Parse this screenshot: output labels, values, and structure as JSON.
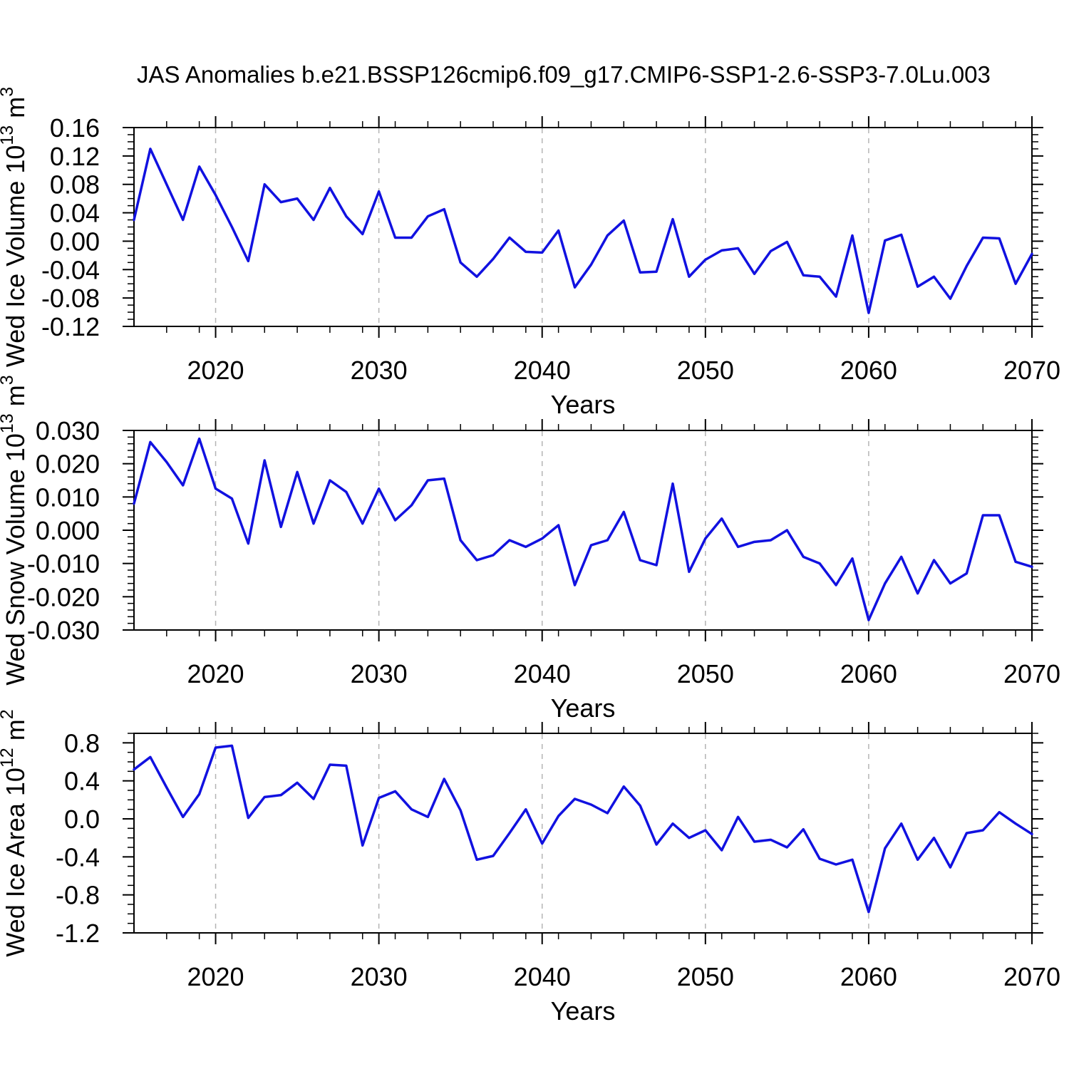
{
  "title": "JAS Anomalies b.e21.BSSP126cmip6.f09_g17.CMIP6-SSP1-2.6-SSP3-7.0Lu.003",
  "colors": {
    "line": "#1111e0",
    "grid": "#b4b4b4",
    "axis": "#000000"
  },
  "chart_data": [
    {
      "type": "line",
      "name": "wed-ice-volume",
      "ylabel": {
        "base": "Wed Ice Volume 10",
        "exp": "13",
        "unit": " m",
        "unit_exp": "3"
      },
      "xlabel": "Years",
      "x_start": 2015,
      "x_end": 2070,
      "xlim": [
        2015,
        2070
      ],
      "ylim": [
        -0.12,
        0.16
      ],
      "ytick_values": [
        0.16,
        0.12,
        0.08,
        0.04,
        0.0,
        -0.04,
        -0.08,
        -0.12
      ],
      "ytick_labels": [
        "0.16",
        "0.12",
        "0.08",
        "0.04",
        "0.00",
        "-0.04",
        "-0.08",
        "-0.12"
      ],
      "yminor_step": 0.01,
      "xtick_values": [
        2020,
        2030,
        2040,
        2050,
        2060,
        2070
      ],
      "xtick_labels": [
        "2020",
        "2030",
        "2040",
        "2050",
        "2060",
        "2070"
      ],
      "xminor_step": 2,
      "gridlines": [
        2020,
        2030,
        2040,
        2050,
        2060
      ],
      "grid_style": "dashed",
      "legend": "none",
      "values": [
        0.03,
        0.13,
        0.08,
        0.03,
        0.105,
        0.065,
        0.02,
        -0.028,
        0.08,
        0.055,
        0.06,
        0.03,
        0.075,
        0.035,
        0.01,
        0.07,
        0.005,
        0.005,
        0.035,
        0.045,
        -0.03,
        -0.05,
        -0.025,
        0.005,
        -0.015,
        -0.016,
        0.015,
        -0.065,
        -0.033,
        0.008,
        0.029,
        -0.044,
        -0.043,
        0.031,
        -0.05,
        -0.026,
        -0.013,
        -0.01,
        -0.046,
        -0.014,
        -0.001,
        -0.048,
        -0.05,
        -0.078,
        0.008,
        -0.101,
        0.001,
        0.009,
        -0.064,
        -0.05,
        -0.081,
        -0.035,
        0.005,
        0.004,
        -0.06,
        -0.018
      ]
    },
    {
      "type": "line",
      "name": "wed-snow-volume",
      "ylabel": {
        "base": "Wed Snow Volume 10",
        "exp": "13",
        "unit": " m",
        "unit_exp": "3"
      },
      "xlabel": "Years",
      "x_start": 2015,
      "x_end": 2070,
      "xlim": [
        2015,
        2070
      ],
      "ylim": [
        -0.03,
        0.03
      ],
      "ytick_values": [
        0.03,
        0.02,
        0.01,
        0.0,
        -0.01,
        -0.02,
        -0.03
      ],
      "ytick_labels": [
        "0.030",
        "0.020",
        "0.010",
        "0.000",
        "-0.010",
        "-0.020",
        "-0.030"
      ],
      "yminor_step": 0.002,
      "xtick_values": [
        2020,
        2030,
        2040,
        2050,
        2060,
        2070
      ],
      "xtick_labels": [
        "2020",
        "2030",
        "2040",
        "2050",
        "2060",
        "2070"
      ],
      "xminor_step": 2,
      "gridlines": [
        2020,
        2030,
        2040,
        2050,
        2060
      ],
      "grid_style": "dashed",
      "legend": "none",
      "values": [
        0.008,
        0.0265,
        0.0205,
        0.0135,
        0.0275,
        0.0125,
        0.0095,
        -0.004,
        0.021,
        0.001,
        0.0175,
        0.002,
        0.015,
        0.0115,
        0.002,
        0.0125,
        0.003,
        0.0075,
        0.015,
        0.0155,
        -0.003,
        -0.009,
        -0.0075,
        -0.003,
        -0.005,
        -0.0025,
        0.0015,
        -0.0165,
        -0.0045,
        -0.003,
        0.0055,
        -0.009,
        -0.0105,
        0.014,
        -0.0125,
        -0.0025,
        0.0035,
        -0.005,
        -0.0035,
        -0.003,
        0.0,
        -0.008,
        -0.01,
        -0.0165,
        -0.0085,
        -0.027,
        -0.016,
        -0.008,
        -0.019,
        -0.009,
        -0.016,
        -0.013,
        0.0045,
        0.0045,
        -0.0095,
        -0.011
      ]
    },
    {
      "type": "line",
      "name": "wed-ice-area",
      "ylabel": {
        "base": "Wed Ice Area 10",
        "exp": "12",
        "unit": " m",
        "unit_exp": "2"
      },
      "xlabel": "Years",
      "x_start": 2015,
      "x_end": 2070,
      "xlim": [
        2015,
        2070
      ],
      "ylim": [
        -1.2,
        0.9
      ],
      "ytick_values": [
        0.8,
        0.4,
        0.0,
        -0.4,
        -0.8,
        -1.2
      ],
      "ytick_labels": [
        "0.8",
        "0.4",
        "0.0",
        "-0.4",
        "-0.8",
        "-1.2"
      ],
      "yminor_step": 0.1,
      "xtick_values": [
        2020,
        2030,
        2040,
        2050,
        2060,
        2070
      ],
      "xtick_labels": [
        "2020",
        "2030",
        "2040",
        "2050",
        "2060",
        "2070"
      ],
      "xminor_step": 2,
      "gridlines": [
        2020,
        2030,
        2040,
        2050,
        2060
      ],
      "grid_style": "dashed",
      "legend": "none",
      "values": [
        0.52,
        0.65,
        0.33,
        0.02,
        0.26,
        0.75,
        0.77,
        0.01,
        0.23,
        0.25,
        0.38,
        0.21,
        0.57,
        0.56,
        -0.28,
        0.22,
        0.29,
        0.1,
        0.02,
        0.42,
        0.09,
        -0.43,
        -0.39,
        -0.15,
        0.1,
        -0.26,
        0.03,
        0.21,
        0.15,
        0.06,
        0.34,
        0.14,
        -0.27,
        -0.05,
        -0.2,
        -0.12,
        -0.33,
        0.02,
        -0.24,
        -0.22,
        -0.3,
        -0.11,
        -0.42,
        -0.48,
        -0.43,
        -0.98,
        -0.31,
        -0.05,
        -0.43,
        -0.2,
        -0.51,
        -0.15,
        -0.12,
        0.07,
        -0.05,
        -0.16
      ]
    }
  ]
}
